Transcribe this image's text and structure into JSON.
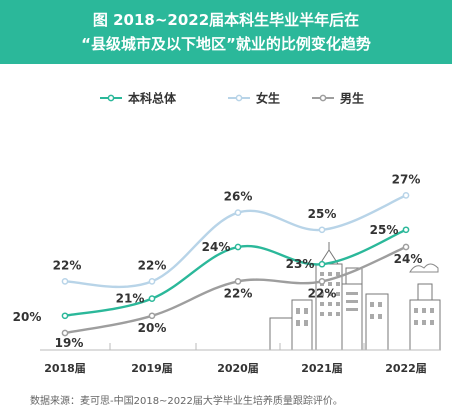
{
  "chart_data": {
    "type": "line",
    "title_lines": [
      "图 2018~2022届本科生毕业半年后在",
      "“县级城市及以下地区”就业的比例变化趋势"
    ],
    "categories": [
      "2018届",
      "2019届",
      "2020届",
      "2021届",
      "2022届"
    ],
    "series": [
      {
        "name": "本科总体",
        "values": [
          20,
          21,
          24,
          23,
          25
        ],
        "labels": [
          "20%",
          "21%",
          "24%",
          "23%",
          "25%"
        ],
        "color": "#2bb89a"
      },
      {
        "name": "女生",
        "values": [
          22,
          22,
          26,
          25,
          27
        ],
        "labels": [
          "22%",
          "22%",
          "26%",
          "25%",
          "27%"
        ],
        "color": "#b8d4e8"
      },
      {
        "name": "男生",
        "values": [
          19,
          20,
          22,
          22,
          24
        ],
        "labels": [
          "19%",
          "20%",
          "22%",
          "22%",
          "24%"
        ],
        "color": "#9e9e9e"
      }
    ],
    "legend_position": "top",
    "grid": false
  },
  "source_note": "数据来源：麦可思-中国2018~2022届大学毕业生培养质量跟踪评价。"
}
